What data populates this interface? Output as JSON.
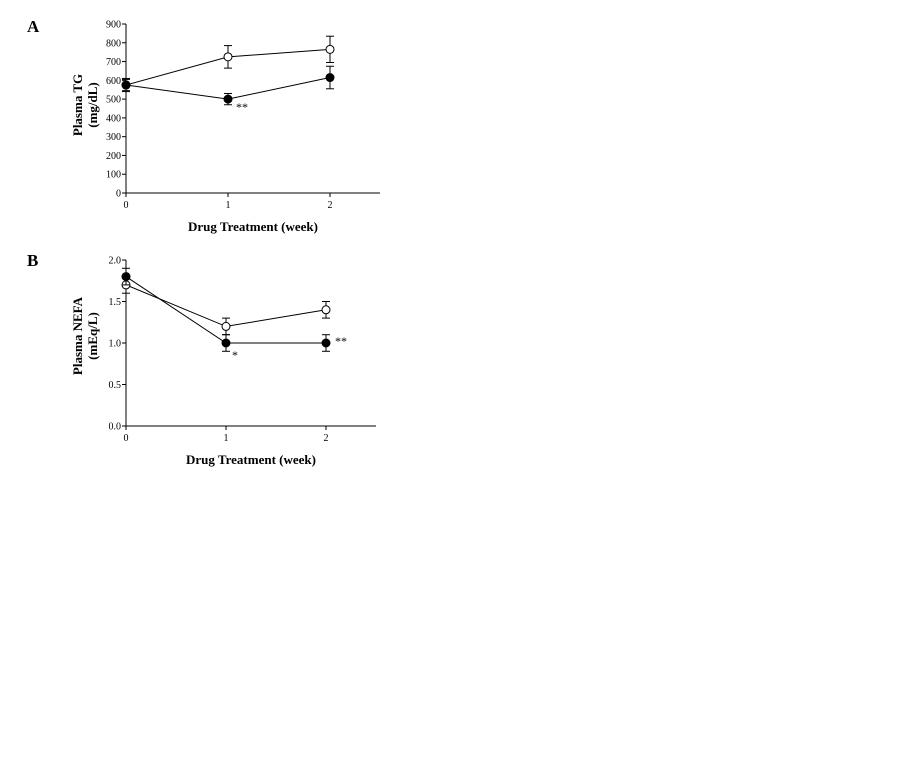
{
  "chart_data": [
    {
      "type": "line",
      "panel_label": "A",
      "xlabel": "Drug Treatment (week)",
      "ylabel_lines": [
        "Plasma TG",
        "(mg/dL)"
      ],
      "x": [
        0,
        1,
        2
      ],
      "xlim": [
        0,
        2.5
      ],
      "ylim": [
        0,
        900
      ],
      "xticks": [
        "0",
        "1",
        "2"
      ],
      "yticks": [
        "0",
        "100",
        "200",
        "300",
        "400",
        "500",
        "600",
        "700",
        "800",
        "900"
      ],
      "series": [
        {
          "marker": "open-circle",
          "values": [
            575,
            725,
            765
          ],
          "errors": [
            30,
            60,
            70
          ]
        },
        {
          "marker": "filled-circle",
          "values": [
            575,
            500,
            615
          ],
          "errors": [
            35,
            30,
            60
          ]
        }
      ],
      "annotations": [
        {
          "x": 1,
          "text": "**"
        }
      ]
    },
    {
      "type": "line",
      "panel_label": "B",
      "xlabel": "Drug Treatment (week)",
      "ylabel_lines": [
        "Plasma NEFA",
        "(mEq/L)"
      ],
      "x": [
        0,
        1,
        2
      ],
      "xlim": [
        0,
        2.5
      ],
      "ylim": [
        0,
        2.0
      ],
      "xticks": [
        "0",
        "1",
        "2"
      ],
      "yticks": [
        "0.0",
        "0.5",
        "1.0",
        "1.5",
        "2.0"
      ],
      "series": [
        {
          "marker": "open-circle",
          "values": [
            1.7,
            1.2,
            1.4
          ],
          "errors": [
            0.1,
            0.1,
            0.1
          ]
        },
        {
          "marker": "filled-circle",
          "values": [
            1.8,
            1.0,
            1.0
          ],
          "errors": [
            0.1,
            0.1,
            0.1
          ]
        }
      ],
      "annotations": [
        {
          "x": 1,
          "text": "*"
        },
        {
          "x": 2,
          "text": "**"
        }
      ]
    }
  ]
}
